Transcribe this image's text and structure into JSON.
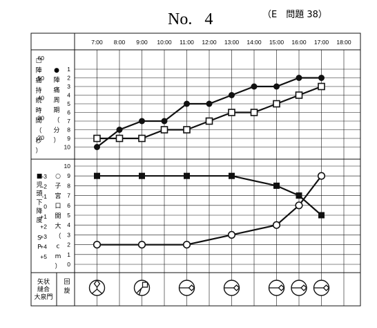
{
  "header": {
    "title": "No.   4",
    "subtitle": "（E　問題 38）"
  },
  "labels": {
    "pain_duration": "□陣痛持続時間（秒）",
    "pain_interval": "●陣痛周期（分）",
    "station": "■児頭下降度 SP",
    "cervix": "○子宮口開大（cm）",
    "suture": [
      "矢状",
      "縫合",
      "大泉門"
    ],
    "rotation": [
      "回",
      "旋"
    ]
  },
  "chart_data": {
    "type": "line",
    "x": [
      "7:00",
      "8:00",
      "9:00",
      "10:00",
      "11:00",
      "12:00",
      "13:00",
      "14:00",
      "15:00",
      "16:00",
      "17:00",
      "18:00"
    ],
    "upper": {
      "left_axis": {
        "ticks": [
          "60",
          "50",
          "40",
          "30",
          "20"
        ],
        "range": [
          10,
          60
        ]
      },
      "right_axis": {
        "ticks": [
          "1",
          "2",
          "3",
          "4",
          "5",
          "6",
          "7",
          "8",
          "9",
          "10"
        ],
        "range": [
          1,
          10
        ],
        "inverted": true
      },
      "series": [
        {
          "marker": "filled-circle",
          "points": [
            [
              "7:00",
              10
            ],
            [
              "8:00",
              8
            ],
            [
              "9:00",
              7
            ],
            [
              "10:00",
              7
            ],
            [
              "11:00",
              5
            ],
            [
              "12:00",
              5
            ],
            [
              "13:00",
              4
            ],
            [
              "14:00",
              3
            ],
            [
              "15:00",
              3
            ],
            [
              "16:00",
              2
            ],
            [
              "17:00",
              2
            ]
          ]
        },
        {
          "marker": "open-square",
          "points": [
            [
              "7:00",
              9
            ],
            [
              "8:00",
              9
            ],
            [
              "9:00",
              9
            ],
            [
              "10:00",
              8
            ],
            [
              "11:00",
              8
            ],
            [
              "12:00",
              7
            ],
            [
              "13:00",
              6
            ],
            [
              "14:00",
              6
            ],
            [
              "15:00",
              5
            ],
            [
              "16:00",
              4
            ],
            [
              "17:00",
              3
            ]
          ]
        }
      ]
    },
    "lower": {
      "left_axis": {
        "ticks": [
          "-3",
          "-2",
          "-1",
          "0",
          "+1",
          "+2",
          "+3",
          "+4",
          "+5"
        ],
        "range": [
          -3,
          5
        ]
      },
      "right_axis": {
        "ticks": [
          "10",
          "9",
          "8",
          "7",
          "6",
          "5",
          "4",
          "3",
          "2",
          "1",
          "0"
        ],
        "range": [
          0,
          10
        ]
      },
      "series": [
        {
          "marker": "filled-square",
          "points": [
            [
              "7:00",
              9
            ],
            [
              "9:00",
              9
            ],
            [
              "11:00",
              9
            ],
            [
              "13:00",
              9
            ],
            [
              "15:00",
              8
            ],
            [
              "16:00",
              7
            ],
            [
              "17:00",
              5
            ]
          ]
        },
        {
          "marker": "open-circle",
          "points": [
            [
              "7:00",
              2
            ],
            [
              "9:00",
              2
            ],
            [
              "11:00",
              2
            ],
            [
              "13:00",
              3
            ],
            [
              "15:00",
              4
            ],
            [
              "16:00",
              6
            ],
            [
              "17:00",
              9
            ]
          ]
        }
      ]
    },
    "head_position": [
      {
        "time": "7:00",
        "icon": "occiput-diamond-top"
      },
      {
        "time": "9:00",
        "icon": "occiput-square-upper-right"
      },
      {
        "time": "11:00",
        "icon": "occiput-diamond-right"
      },
      {
        "time": "13:00",
        "icon": "occiput-diamond-right"
      },
      {
        "time": "15:00",
        "icon": "occiput-diamond-right"
      },
      {
        "time": "16:00",
        "icon": "occiput-diamond-right"
      },
      {
        "time": "17:00",
        "icon": "occiput-diamond-right"
      }
    ]
  }
}
